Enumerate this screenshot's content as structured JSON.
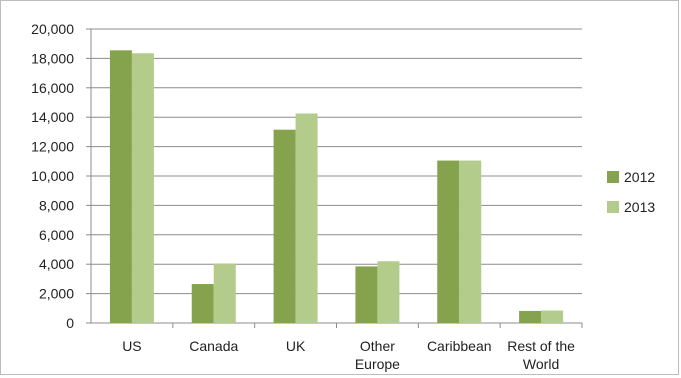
{
  "chart_data": {
    "type": "bar",
    "categories": [
      [
        "US"
      ],
      [
        "Canada"
      ],
      [
        "UK"
      ],
      [
        "Other",
        "Europe"
      ],
      [
        "Caribbean"
      ],
      [
        "Rest of the",
        "World"
      ]
    ],
    "series": [
      {
        "name": "2012",
        "color": "#84a34c",
        "values": [
          18550,
          2650,
          13150,
          3850,
          11050,
          820
        ]
      },
      {
        "name": "2013",
        "color": "#b3cc8b",
        "values": [
          18350,
          4050,
          14250,
          4200,
          11050,
          850
        ]
      }
    ],
    "yticks": [
      "0",
      "2,000",
      "4,000",
      "6,000",
      "8,000",
      "10,000",
      "12,000",
      "14,000",
      "16,000",
      "18,000",
      "20,000"
    ],
    "ylim": [
      0,
      20000
    ],
    "grid": true,
    "legend_position": "right"
  }
}
